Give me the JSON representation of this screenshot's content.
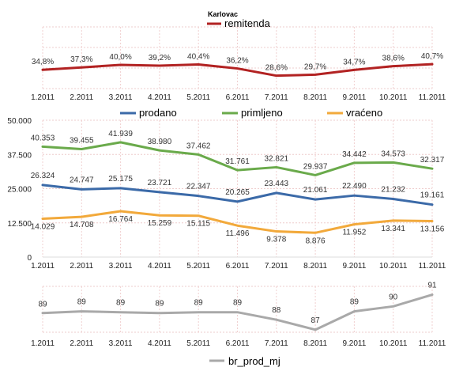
{
  "chart_data": [
    {
      "type": "line",
      "title": "Karlovac",
      "categories": [
        "1.2011",
        "2.2011",
        "3.2011",
        "4.2011",
        "5.2011",
        "6.2011",
        "7.2011",
        "8.2011",
        "9.2011",
        "10.2011",
        "11.2011"
      ],
      "series": [
        {
          "name": "remitenda",
          "color": "#b22222",
          "values": [
            34.8,
            37.3,
            40.0,
            39.2,
            40.4,
            36.2,
            28.6,
            29.7,
            34.7,
            38.6,
            40.7
          ],
          "labels": [
            "34,8%",
            "37,3%",
            "40,0%",
            "39,2%",
            "40,4%",
            "36,2%",
            "28,6%",
            "29,7%",
            "34,7%",
            "38,6%",
            "40,7%"
          ]
        }
      ],
      "ylim": [
        0,
        100
      ],
      "grid": true,
      "legend": "top"
    },
    {
      "type": "line",
      "categories": [
        "1.2011",
        "2.2011",
        "3.2011",
        "4.2011",
        "5.2011",
        "6.2011",
        "7.2011",
        "8.2011",
        "9.2011",
        "10.2011",
        "11.2011"
      ],
      "yticks": [
        "0",
        "12.500",
        "25.000",
        "37.500",
        "50.000"
      ],
      "ylim": [
        0,
        50000
      ],
      "grid": true,
      "legend": "top",
      "series": [
        {
          "name": "prodano",
          "color": "#3b6aa8",
          "values": [
            26324,
            24747,
            25175,
            23721,
            22347,
            20265,
            23443,
            21061,
            22490,
            21232,
            19161
          ],
          "labels": [
            "26.324",
            "24.747",
            "25.175",
            "23.721",
            "22.347",
            "20.265",
            "23.443",
            "21.061",
            "22.490",
            "21.232",
            "19.161"
          ]
        },
        {
          "name": "primljeno",
          "color": "#6aaa4b",
          "values": [
            40353,
            39455,
            41939,
            38980,
            37462,
            31761,
            32821,
            29937,
            34442,
            34573,
            32317
          ],
          "labels": [
            "40.353",
            "39.455",
            "41.939",
            "38.980",
            "37.462",
            "31.761",
            "32.821",
            "29.937",
            "34.442",
            "34.573",
            "32.317"
          ]
        },
        {
          "name": "vraćeno",
          "color": "#f2a93b",
          "values": [
            14029,
            14708,
            16764,
            15259,
            15115,
            11496,
            9378,
            8876,
            11952,
            13341,
            13156
          ],
          "labels": [
            "14.029",
            "14.708",
            "16.764",
            "15.259",
            "15.115",
            "11.496",
            "9.378",
            "8.876",
            "11.952",
            "13.341",
            "13.156"
          ]
        }
      ]
    },
    {
      "type": "line",
      "categories": [
        "1.2011",
        "2.2011",
        "3.2011",
        "4.2011",
        "5.2011",
        "6.2011",
        "7.2011",
        "8.2011",
        "9.2011",
        "10.2011",
        "11.2011"
      ],
      "grid": true,
      "legend": "bottom",
      "ylim": [
        86.5,
        92
      ],
      "series": [
        {
          "name": "br_prod_mj",
          "color": "#a9a9a9",
          "values": [
            88.8,
            89.0,
            88.9,
            88.8,
            88.9,
            88.9,
            88.0,
            86.8,
            89.0,
            89.6,
            91.0
          ],
          "labels": [
            "89",
            "89",
            "89",
            "89",
            "89",
            "89",
            "88",
            "87",
            "89",
            "90",
            "91"
          ]
        }
      ]
    }
  ]
}
